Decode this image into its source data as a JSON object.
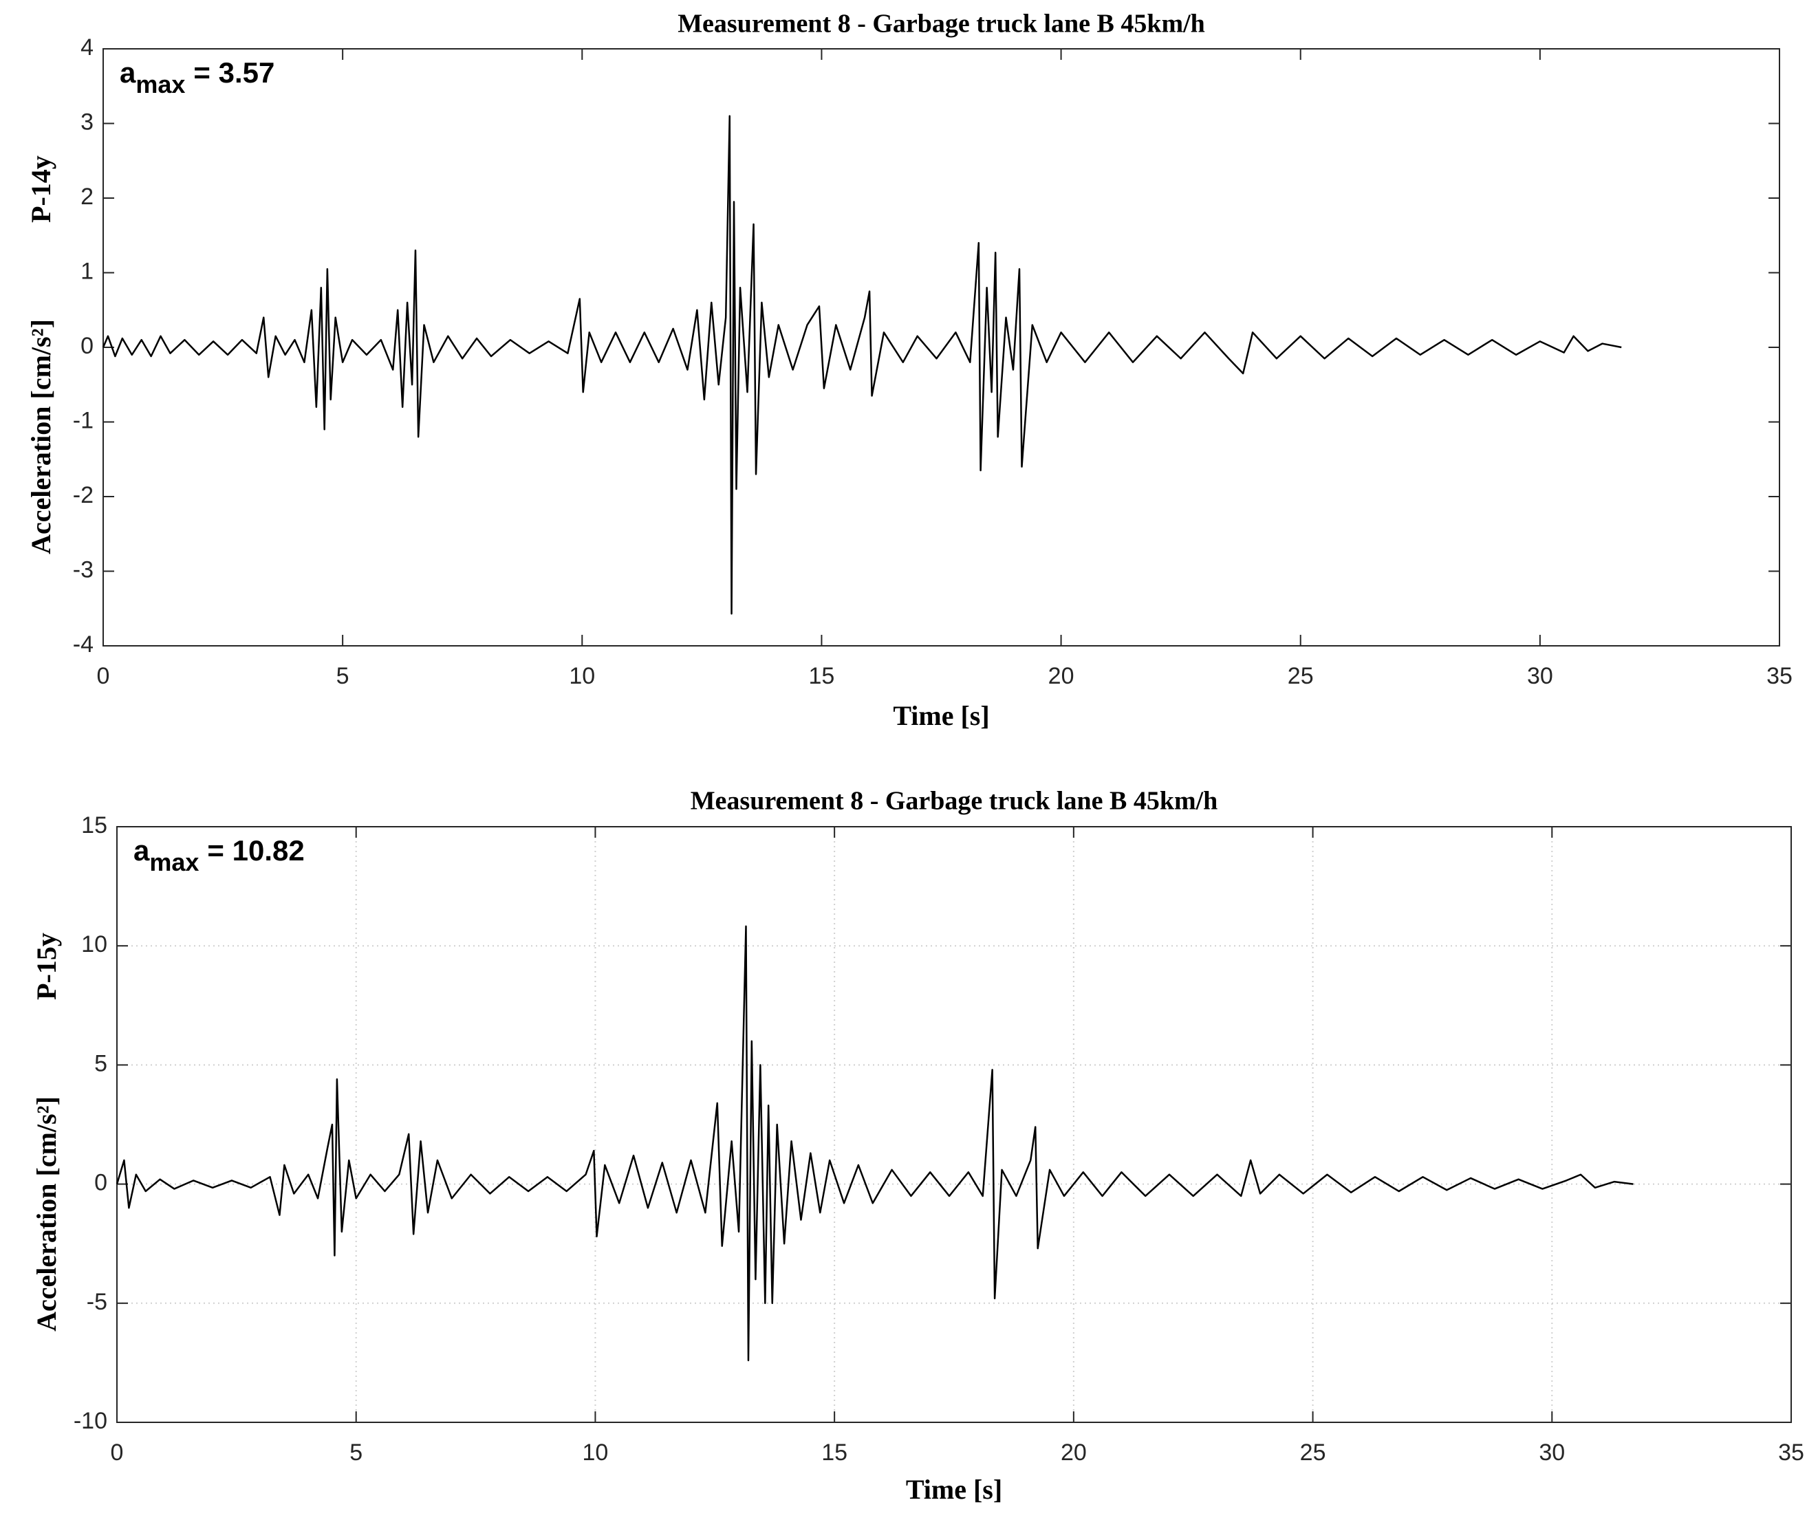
{
  "chart_data": [
    {
      "type": "line",
      "title": "Measurement 8 - Garbage truck lane B 45km/h",
      "x_label": "Time [s]",
      "y_label": "Acceleration [cm/s²]",
      "y_label_tag": "P-14y",
      "annotation": {
        "base": "a",
        "sub": "max",
        "text": "= 3.57"
      },
      "xlim": [
        0,
        35
      ],
      "xticks": [
        0,
        5,
        10,
        15,
        20,
        25,
        30,
        35
      ],
      "ylim": [
        -4,
        4
      ],
      "yticks": [
        -4,
        -3,
        -2,
        -1,
        0,
        1,
        2,
        3,
        4
      ],
      "grid": false,
      "x": [
        0,
        0.1,
        0.25,
        0.4,
        0.6,
        0.8,
        1.0,
        1.2,
        1.4,
        1.7,
        2.0,
        2.3,
        2.6,
        2.9,
        3.2,
        3.35,
        3.45,
        3.6,
        3.8,
        4.0,
        4.2,
        4.35,
        4.45,
        4.55,
        4.62,
        4.68,
        4.75,
        4.85,
        5.0,
        5.2,
        5.5,
        5.8,
        6.05,
        6.15,
        6.25,
        6.35,
        6.45,
        6.52,
        6.58,
        6.7,
        6.9,
        7.2,
        7.5,
        7.8,
        8.1,
        8.5,
        8.9,
        9.3,
        9.7,
        9.95,
        10.02,
        10.15,
        10.4,
        10.7,
        11.0,
        11.3,
        11.6,
        11.9,
        12.2,
        12.4,
        12.55,
        12.7,
        12.85,
        13.0,
        13.08,
        13.12,
        13.17,
        13.22,
        13.3,
        13.45,
        13.58,
        13.63,
        13.75,
        13.9,
        14.1,
        14.4,
        14.7,
        14.95,
        15.05,
        15.3,
        15.6,
        15.9,
        16.0,
        16.05,
        16.3,
        16.7,
        17.0,
        17.4,
        17.8,
        18.1,
        18.28,
        18.32,
        18.45,
        18.55,
        18.63,
        18.68,
        18.85,
        19.0,
        19.13,
        19.18,
        19.4,
        19.7,
        20.0,
        20.5,
        21.0,
        21.5,
        22.0,
        22.5,
        23.0,
        23.5,
        23.8,
        24.0,
        24.5,
        25.0,
        25.5,
        26.0,
        26.5,
        27.0,
        27.5,
        28.0,
        28.5,
        29.0,
        29.5,
        30.0,
        30.5,
        30.7,
        31.0,
        31.3,
        31.7
      ],
      "series": [
        {
          "color": "#000000",
          "values": [
            0,
            0.15,
            -0.12,
            0.12,
            -0.1,
            0.1,
            -0.12,
            0.15,
            -0.08,
            0.1,
            -0.1,
            0.08,
            -0.1,
            0.1,
            -0.08,
            0.4,
            -0.4,
            0.15,
            -0.1,
            0.1,
            -0.2,
            0.5,
            -0.8,
            0.8,
            -1.1,
            1.05,
            -0.7,
            0.4,
            -0.2,
            0.1,
            -0.1,
            0.1,
            -0.3,
            0.5,
            -0.8,
            0.6,
            -0.5,
            1.3,
            -1.2,
            0.3,
            -0.2,
            0.15,
            -0.15,
            0.12,
            -0.12,
            0.1,
            -0.08,
            0.08,
            -0.08,
            0.65,
            -0.6,
            0.2,
            -0.2,
            0.2,
            -0.2,
            0.2,
            -0.2,
            0.25,
            -0.3,
            0.5,
            -0.7,
            0.6,
            -0.5,
            0.4,
            3.1,
            -3.57,
            1.95,
            -1.9,
            0.8,
            -0.6,
            1.65,
            -1.7,
            0.6,
            -0.4,
            0.3,
            -0.3,
            0.3,
            0.55,
            -0.55,
            0.3,
            -0.3,
            0.4,
            0.75,
            -0.65,
            0.2,
            -0.2,
            0.15,
            -0.15,
            0.2,
            -0.2,
            1.4,
            -1.65,
            0.8,
            -0.6,
            1.27,
            -1.2,
            0.4,
            -0.3,
            1.05,
            -1.6,
            0.3,
            -0.2,
            0.2,
            -0.2,
            0.2,
            -0.2,
            0.15,
            -0.15,
            0.2,
            -0.15,
            -0.35,
            0.2,
            -0.15,
            0.15,
            -0.15,
            0.12,
            -0.12,
            0.12,
            -0.1,
            0.1,
            -0.1,
            0.1,
            -0.1,
            0.08,
            -0.07,
            0.15,
            -0.05,
            0.05,
            0
          ]
        }
      ]
    },
    {
      "type": "line",
      "title": "Measurement 8 - Garbage truck lane B 45km/h",
      "x_label": "Time [s]",
      "y_label": "Acceleration [cm/s²]",
      "y_label_tag": "P-15y",
      "annotation": {
        "base": "a",
        "sub": "max",
        "text": "= 10.82"
      },
      "xlim": [
        0,
        35
      ],
      "xticks": [
        0,
        5,
        10,
        15,
        20,
        25,
        30,
        35
      ],
      "ylim": [
        -10,
        15
      ],
      "yticks": [
        -10,
        -5,
        0,
        5,
        10,
        15
      ],
      "grid": true,
      "x": [
        0,
        0.15,
        0.25,
        0.4,
        0.6,
        0.9,
        1.2,
        1.6,
        2.0,
        2.4,
        2.8,
        3.2,
        3.4,
        3.5,
        3.7,
        4.0,
        4.2,
        4.4,
        4.5,
        4.55,
        4.6,
        4.7,
        4.85,
        5.0,
        5.3,
        5.6,
        5.9,
        6.1,
        6.2,
        6.35,
        6.5,
        6.7,
        7.0,
        7.4,
        7.8,
        8.2,
        8.6,
        9.0,
        9.4,
        9.8,
        9.97,
        10.03,
        10.2,
        10.5,
        10.8,
        11.1,
        11.4,
        11.7,
        12.0,
        12.3,
        12.55,
        12.65,
        12.85,
        13.0,
        13.15,
        13.2,
        13.27,
        13.35,
        13.45,
        13.55,
        13.62,
        13.7,
        13.8,
        13.95,
        14.1,
        14.3,
        14.5,
        14.7,
        14.9,
        15.2,
        15.5,
        15.8,
        16.2,
        16.6,
        17.0,
        17.4,
        17.8,
        18.1,
        18.3,
        18.35,
        18.5,
        18.8,
        19.1,
        19.2,
        19.25,
        19.5,
        19.8,
        20.2,
        20.6,
        21.0,
        21.5,
        22.0,
        22.5,
        23.0,
        23.5,
        23.7,
        23.9,
        24.3,
        24.8,
        25.3,
        25.8,
        26.3,
        26.8,
        27.3,
        27.8,
        28.3,
        28.8,
        29.3,
        29.8,
        30.3,
        30.6,
        30.9,
        31.3,
        31.7
      ],
      "series": [
        {
          "color": "#000000",
          "values": [
            0,
            1.0,
            -1.0,
            0.4,
            -0.3,
            0.2,
            -0.2,
            0.15,
            -0.15,
            0.15,
            -0.15,
            0.3,
            -1.3,
            0.8,
            -0.4,
            0.4,
            -0.6,
            1.5,
            2.5,
            -3.0,
            4.4,
            -2.0,
            1.0,
            -0.6,
            0.4,
            -0.3,
            0.4,
            2.1,
            -2.1,
            1.8,
            -1.2,
            1.0,
            -0.6,
            0.4,
            -0.4,
            0.3,
            -0.3,
            0.3,
            -0.3,
            0.4,
            1.4,
            -2.2,
            0.8,
            -0.8,
            1.2,
            -1.0,
            0.9,
            -1.2,
            1.0,
            -1.2,
            3.4,
            -2.6,
            1.8,
            -2.0,
            10.82,
            -7.4,
            6.0,
            -4.0,
            5.0,
            -5.0,
            3.3,
            -5.0,
            2.5,
            -2.5,
            1.8,
            -1.5,
            1.3,
            -1.2,
            1.0,
            -0.8,
            0.8,
            -0.8,
            0.6,
            -0.5,
            0.5,
            -0.5,
            0.5,
            -0.5,
            4.8,
            -4.8,
            0.6,
            -0.5,
            1.0,
            2.4,
            -2.7,
            0.6,
            -0.5,
            0.5,
            -0.5,
            0.5,
            -0.5,
            0.4,
            -0.5,
            0.4,
            -0.5,
            1.0,
            -0.4,
            0.4,
            -0.4,
            0.4,
            -0.35,
            0.3,
            -0.3,
            0.3,
            -0.25,
            0.25,
            -0.2,
            0.2,
            -0.2,
            0.15,
            0.4,
            -0.15,
            0.1,
            0
          ]
        }
      ]
    }
  ]
}
